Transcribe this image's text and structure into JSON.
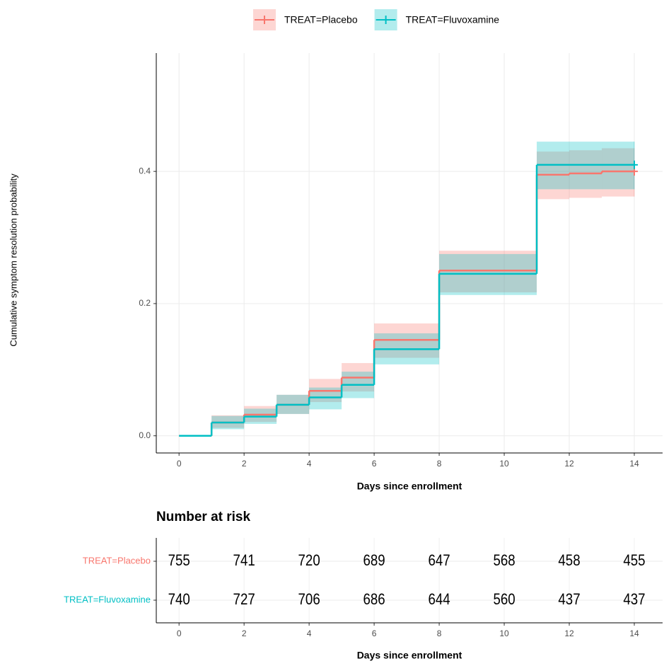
{
  "chart_data": [
    {
      "type": "step",
      "ylabel": "Cumulative symptom resolution probability",
      "xlabel": "Days since enrollment",
      "x": [
        0,
        1,
        2,
        3,
        4,
        5,
        6,
        8,
        11,
        12,
        13,
        14
      ],
      "series": [
        {
          "name": "TREAT=Placebo",
          "color": "#F8766D",
          "values": [
            0,
            0.02,
            0.032,
            0.047,
            0.068,
            0.088,
            0.145,
            0.25,
            0.395,
            0.397,
            0.4,
            0.4
          ],
          "lower": [
            0,
            0.012,
            0.021,
            0.033,
            0.051,
            0.067,
            0.118,
            0.217,
            0.358,
            0.36,
            0.362,
            0.362
          ],
          "upper": [
            0,
            0.031,
            0.045,
            0.062,
            0.086,
            0.11,
            0.17,
            0.28,
            0.43,
            0.432,
            0.435,
            0.435
          ]
        },
        {
          "name": "TREAT=Fluvoxamine",
          "color": "#00BFC4",
          "values": [
            0,
            0.02,
            0.029,
            0.047,
            0.058,
            0.077,
            0.131,
            0.245,
            0.41,
            0.41,
            0.41,
            0.41
          ],
          "lower": [
            0,
            0.01,
            0.018,
            0.033,
            0.04,
            0.057,
            0.108,
            0.213,
            0.373,
            0.373,
            0.373,
            0.373
          ],
          "upper": [
            0,
            0.03,
            0.041,
            0.062,
            0.073,
            0.097,
            0.155,
            0.275,
            0.445,
            0.445,
            0.445,
            0.445
          ]
        }
      ],
      "xlim": [
        -0.7,
        14.87
      ],
      "ylim": [
        -0.026,
        0.579
      ],
      "xticks": [
        0,
        2,
        4,
        6,
        8,
        10,
        12,
        14
      ],
      "yticks": [
        {
          "value": 0,
          "label": "0.0"
        },
        0.2,
        0.4
      ],
      "grid": true,
      "legend": "top"
    },
    {
      "type": "risk-table",
      "title": "Number at risk",
      "xlabel": "Days since enrollment",
      "x": [
        0,
        2,
        4,
        6,
        8,
        10,
        12,
        14
      ],
      "series": [
        {
          "name": "TREAT=Placebo",
          "color": "#F8766D",
          "values": [
            755,
            741,
            720,
            689,
            647,
            568,
            458,
            455
          ]
        },
        {
          "name": "TREAT=Fluvoxamine",
          "color": "#00BFC4",
          "values": [
            740,
            727,
            706,
            686,
            644,
            560,
            437,
            437
          ]
        }
      ],
      "xlim": [
        -0.7,
        14.87
      ],
      "xticks": [
        0,
        2,
        4,
        6,
        8,
        10,
        12,
        14
      ]
    }
  ]
}
